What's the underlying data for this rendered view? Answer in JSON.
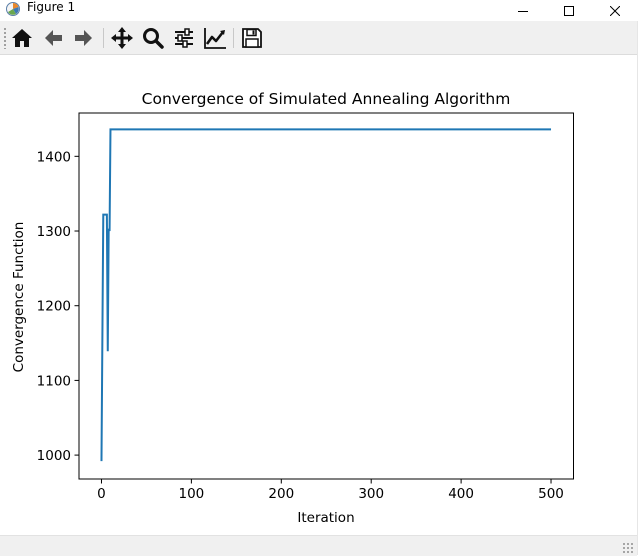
{
  "window": {
    "title": "Figure 1",
    "app_icon": "matplotlib-figure-icon",
    "controls": [
      "minimize-icon",
      "maximize-icon",
      "close-icon"
    ]
  },
  "toolbar": {
    "buttons": [
      {
        "name": "home-button",
        "icon": "home-icon"
      },
      {
        "name": "back-button",
        "icon": "arrow-left-icon"
      },
      {
        "name": "forward-button",
        "icon": "arrow-right-icon"
      },
      {
        "name": "pan-button",
        "icon": "move-arrows-icon"
      },
      {
        "name": "zoom-button",
        "icon": "magnifier-icon"
      },
      {
        "name": "subplots-button",
        "icon": "sliders-icon"
      },
      {
        "name": "edit-axis-button",
        "icon": "line-chart-icon"
      },
      {
        "name": "save-button",
        "icon": "floppy-disk-icon"
      }
    ]
  },
  "status": {
    "text": ""
  },
  "colors": {
    "line": "#1f77b4",
    "toolbar_bg": "#f0f0f0",
    "axes_edge": "#000000"
  },
  "chart_data": {
    "type": "line",
    "title": "Convergence of Simulated Annealing Algorithm",
    "xlabel": "Iteration",
    "ylabel": "Convergence Function",
    "xlim": [
      -25,
      525
    ],
    "ylim": [
      968,
      1458
    ],
    "xticks": [
      0,
      100,
      200,
      300,
      400,
      500
    ],
    "yticks": [
      1000,
      1100,
      1200,
      1300,
      1400
    ],
    "grid": false,
    "series": [
      {
        "x": [
          0,
          2,
          3,
          6,
          7,
          8,
          9,
          10,
          500
        ],
        "y": [
          992,
          1322,
          1322,
          1322,
          1139,
          1303,
          1300,
          1436,
          1436
        ]
      }
    ]
  }
}
